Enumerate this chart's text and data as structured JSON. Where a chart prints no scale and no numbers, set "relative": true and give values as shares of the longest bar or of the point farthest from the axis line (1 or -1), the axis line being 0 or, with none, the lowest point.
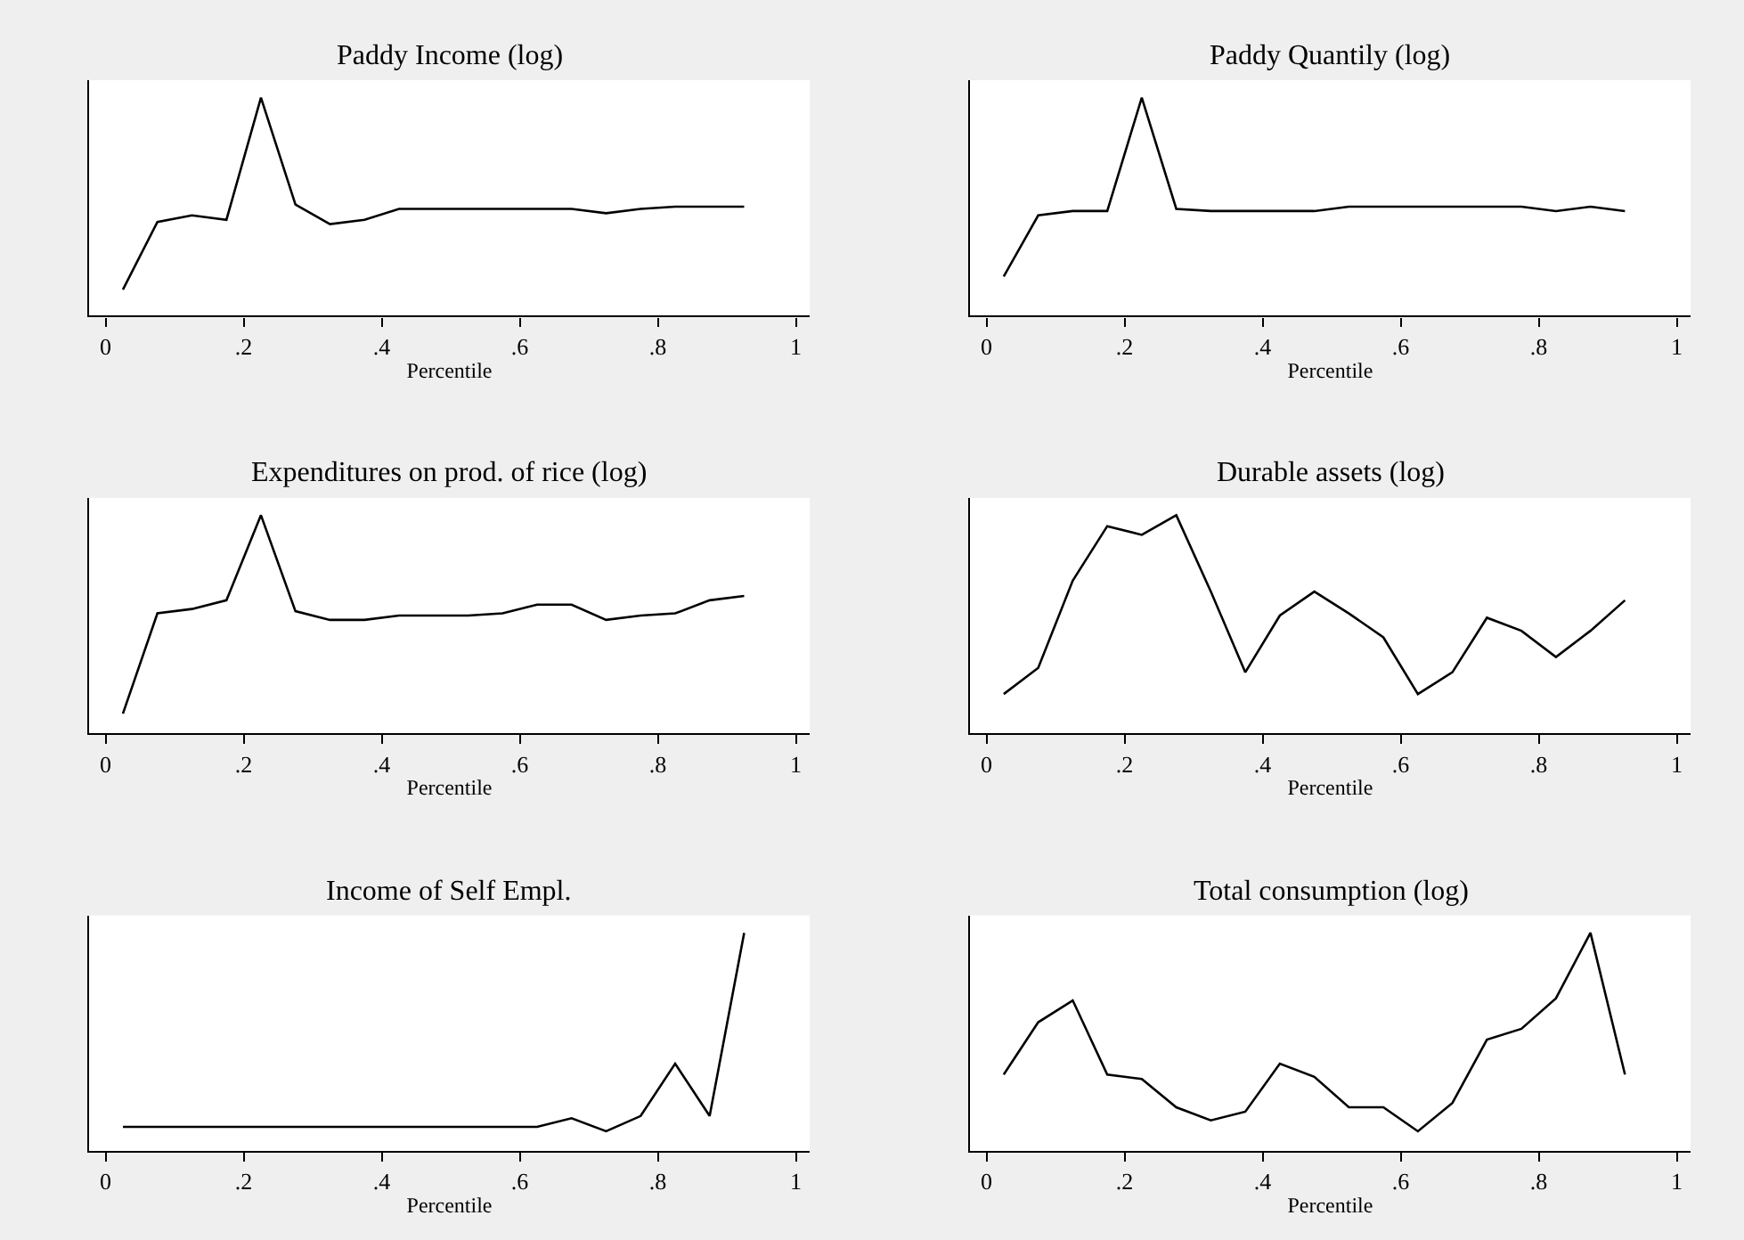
{
  "chart_data": [
    {
      "type": "line",
      "title": "Paddy Income (log)",
      "xlabel": "Percentile",
      "relative": true,
      "color": "#000000",
      "xlim": [
        -0.024,
        1.02
      ],
      "xticks": [
        0,
        {
          "value": 0.2,
          "label": ".2"
        },
        {
          "value": 0.4,
          "label": ".4"
        },
        {
          "value": 0.6,
          "label": ".6"
        },
        {
          "value": 0.8,
          "label": ".8"
        },
        1
      ],
      "x": [
        0.025,
        0.075,
        0.125,
        0.175,
        0.225,
        0.275,
        0.325,
        0.375,
        0.425,
        0.475,
        0.525,
        0.575,
        0.625,
        0.675,
        0.725,
        0.775,
        0.825,
        0.875,
        0.925
      ],
      "values": [
        0.12,
        0.43,
        0.46,
        0.44,
        1,
        0.51,
        0.42,
        0.44,
        0.49,
        0.49,
        0.49,
        0.49,
        0.49,
        0.49,
        0.47,
        0.49,
        0.5,
        0.5,
        0.5
      ]
    },
    {
      "type": "line",
      "title": "Paddy Quantily (log)",
      "xlabel": "Percentile",
      "relative": true,
      "color": "#000000",
      "xlim": [
        -0.024,
        1.02
      ],
      "xticks": [
        0,
        {
          "value": 0.2,
          "label": ".2"
        },
        {
          "value": 0.4,
          "label": ".4"
        },
        {
          "value": 0.6,
          "label": ".6"
        },
        {
          "value": 0.8,
          "label": ".8"
        },
        1
      ],
      "x": [
        0.025,
        0.075,
        0.125,
        0.175,
        0.225,
        0.275,
        0.325,
        0.375,
        0.425,
        0.475,
        0.525,
        0.575,
        0.625,
        0.675,
        0.725,
        0.775,
        0.825,
        0.875,
        0.925
      ],
      "values": [
        0.18,
        0.46,
        0.48,
        0.48,
        1,
        0.49,
        0.48,
        0.48,
        0.48,
        0.48,
        0.5,
        0.5,
        0.5,
        0.5,
        0.5,
        0.5,
        0.48,
        0.5,
        0.48
      ]
    },
    {
      "type": "line",
      "title": "Expenditures on prod. of rice (log)",
      "xlabel": "Percentile",
      "relative": true,
      "color": "#000000",
      "xlim": [
        -0.024,
        1.02
      ],
      "xticks": [
        0,
        {
          "value": 0.2,
          "label": ".2"
        },
        {
          "value": 0.4,
          "label": ".4"
        },
        {
          "value": 0.6,
          "label": ".6"
        },
        {
          "value": 0.8,
          "label": ".8"
        },
        1
      ],
      "x": [
        0.025,
        0.075,
        0.125,
        0.175,
        0.225,
        0.275,
        0.325,
        0.375,
        0.425,
        0.475,
        0.525,
        0.575,
        0.625,
        0.675,
        0.725,
        0.775,
        0.825,
        0.875,
        0.925
      ],
      "values": [
        0.09,
        0.55,
        0.57,
        0.61,
        1,
        0.56,
        0.52,
        0.52,
        0.54,
        0.54,
        0.54,
        0.55,
        0.59,
        0.59,
        0.52,
        0.54,
        0.55,
        0.61,
        0.63
      ]
    },
    {
      "type": "line",
      "title": "Durable assets (log)",
      "xlabel": "Percentile",
      "relative": true,
      "color": "#000000",
      "xlim": [
        -0.024,
        1.02
      ],
      "xticks": [
        0,
        {
          "value": 0.2,
          "label": ".2"
        },
        {
          "value": 0.4,
          "label": ".4"
        },
        {
          "value": 0.6,
          "label": ".6"
        },
        {
          "value": 0.8,
          "label": ".8"
        },
        1
      ],
      "x": [
        0.025,
        0.075,
        0.125,
        0.175,
        0.225,
        0.275,
        0.325,
        0.375,
        0.425,
        0.475,
        0.525,
        0.575,
        0.625,
        0.675,
        0.725,
        0.775,
        0.825,
        0.875,
        0.925
      ],
      "values": [
        0.18,
        0.3,
        0.7,
        0.95,
        0.91,
        1,
        0.65,
        0.28,
        0.54,
        0.65,
        0.55,
        0.44,
        0.18,
        0.28,
        0.53,
        0.47,
        0.35,
        0.47,
        0.61
      ]
    },
    {
      "type": "line",
      "title": "Income of Self Empl.",
      "xlabel": "Percentile",
      "relative": true,
      "color": "#000000",
      "xlim": [
        -0.024,
        1.02
      ],
      "xticks": [
        0,
        {
          "value": 0.2,
          "label": ".2"
        },
        {
          "value": 0.4,
          "label": ".4"
        },
        {
          "value": 0.6,
          "label": ".6"
        },
        {
          "value": 0.8,
          "label": ".8"
        },
        1
      ],
      "x": [
        0.025,
        0.075,
        0.125,
        0.175,
        0.225,
        0.275,
        0.325,
        0.375,
        0.425,
        0.475,
        0.525,
        0.575,
        0.625,
        0.675,
        0.725,
        0.775,
        0.825,
        0.875,
        0.925
      ],
      "values": [
        0.11,
        0.11,
        0.11,
        0.11,
        0.11,
        0.11,
        0.11,
        0.11,
        0.11,
        0.11,
        0.11,
        0.11,
        0.11,
        0.15,
        0.09,
        0.16,
        0.4,
        0.16,
        1
      ]
    },
    {
      "type": "line",
      "title": "Total consumption (log)",
      "xlabel": "Percentile",
      "relative": true,
      "color": "#000000",
      "xlim": [
        -0.024,
        1.02
      ],
      "xticks": [
        0,
        {
          "value": 0.2,
          "label": ".2"
        },
        {
          "value": 0.4,
          "label": ".4"
        },
        {
          "value": 0.6,
          "label": ".6"
        },
        {
          "value": 0.8,
          "label": ".8"
        },
        1
      ],
      "x": [
        0.025,
        0.075,
        0.125,
        0.175,
        0.225,
        0.275,
        0.325,
        0.375,
        0.425,
        0.475,
        0.525,
        0.575,
        0.625,
        0.675,
        0.725,
        0.775,
        0.825,
        0.875,
        0.925
      ],
      "values": [
        0.35,
        0.59,
        0.69,
        0.35,
        0.33,
        0.2,
        0.14,
        0.18,
        0.4,
        0.34,
        0.2,
        0.2,
        0.09,
        0.22,
        0.51,
        0.56,
        0.7,
        1,
        0.35
      ]
    }
  ]
}
